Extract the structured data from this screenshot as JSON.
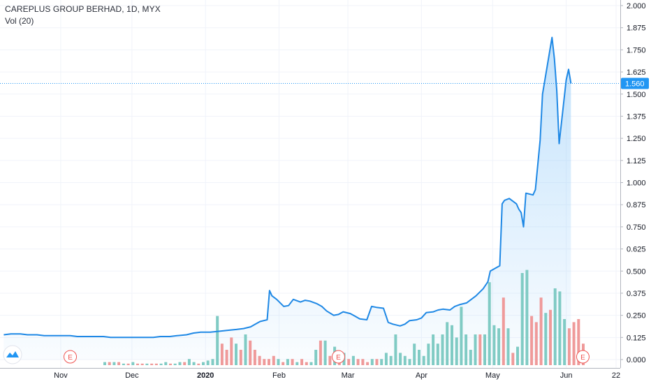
{
  "header": {
    "title": "CAREPLUS GROUP BERHAD, 1D, MYX",
    "volume_label": "Vol (20)"
  },
  "last_price_label": "1.560",
  "earnings_marker": "E",
  "colors": {
    "line": "#1e88e5",
    "area_top": "#90caf9",
    "vol_up": "#80cbc4",
    "vol_down": "#ef9a9a",
    "price_badge": "#2196f3",
    "earnings": "#ef5350",
    "grid": "#f0f3fa",
    "logo": "#2196f3"
  },
  "icons": [
    "tradingview-logo-icon",
    "earnings-marker-icon"
  ],
  "chart_data": {
    "type": "line",
    "title": "CAREPLUS GROUP BERHAD, 1D, MYX",
    "y_axis_position": "right",
    "ylim": [
      0.0,
      2.0
    ],
    "y_ticks": [
      "2.000",
      "1.875",
      "1.750",
      "1.625",
      "1.500",
      "1.375",
      "1.250",
      "1.125",
      "1.000",
      "0.875",
      "0.750",
      "0.625",
      "0.500",
      "0.375",
      "0.250",
      "0.125",
      "0.000"
    ],
    "x_ticks": [
      {
        "label": "Nov",
        "date": "2019-11-01"
      },
      {
        "label": "Dec",
        "date": "2019-12-01"
      },
      {
        "label": "2020",
        "date": "2020-01-01",
        "bold": true
      },
      {
        "label": "Feb",
        "date": "2020-02-01"
      },
      {
        "label": "Mar",
        "date": "2020-03-01"
      },
      {
        "label": "Apr",
        "date": "2020-04-01"
      },
      {
        "label": "May",
        "date": "2020-05-01"
      },
      {
        "label": "Jun",
        "date": "2020-06-01"
      },
      {
        "label": "22",
        "date": "2020-06-22"
      }
    ],
    "last_price": 1.56,
    "earnings_dates": [
      "2019-11-05",
      "2020-02-26",
      "2020-06-08"
    ],
    "series": [
      {
        "name": "Close",
        "points": [
          [
            "2019-10-08",
            0.14
          ],
          [
            "2019-10-11",
            0.145
          ],
          [
            "2019-10-15",
            0.145
          ],
          [
            "2019-10-18",
            0.14
          ],
          [
            "2019-10-22",
            0.14
          ],
          [
            "2019-10-25",
            0.135
          ],
          [
            "2019-10-29",
            0.135
          ],
          [
            "2019-11-01",
            0.135
          ],
          [
            "2019-11-05",
            0.135
          ],
          [
            "2019-11-08",
            0.13
          ],
          [
            "2019-11-12",
            0.13
          ],
          [
            "2019-11-15",
            0.13
          ],
          [
            "2019-11-19",
            0.13
          ],
          [
            "2019-11-22",
            0.125
          ],
          [
            "2019-11-26",
            0.125
          ],
          [
            "2019-11-29",
            0.125
          ],
          [
            "2019-12-03",
            0.125
          ],
          [
            "2019-12-06",
            0.125
          ],
          [
            "2019-12-10",
            0.125
          ],
          [
            "2019-12-13",
            0.13
          ],
          [
            "2019-12-17",
            0.13
          ],
          [
            "2019-12-20",
            0.135
          ],
          [
            "2019-12-24",
            0.14
          ],
          [
            "2019-12-27",
            0.15
          ],
          [
            "2019-12-30",
            0.155
          ],
          [
            "2020-01-03",
            0.155
          ],
          [
            "2020-01-07",
            0.16
          ],
          [
            "2020-01-10",
            0.165
          ],
          [
            "2020-01-14",
            0.17
          ],
          [
            "2020-01-17",
            0.175
          ],
          [
            "2020-01-20",
            0.185
          ],
          [
            "2020-01-22",
            0.2
          ],
          [
            "2020-01-24",
            0.215
          ],
          [
            "2020-01-27",
            0.225
          ],
          [
            "2020-01-28",
            0.39
          ],
          [
            "2020-01-29",
            0.36
          ],
          [
            "2020-01-31",
            0.34
          ],
          [
            "2020-02-03",
            0.3
          ],
          [
            "2020-02-05",
            0.305
          ],
          [
            "2020-02-07",
            0.34
          ],
          [
            "2020-02-10",
            0.325
          ],
          [
            "2020-02-12",
            0.335
          ],
          [
            "2020-02-14",
            0.33
          ],
          [
            "2020-02-17",
            0.315
          ],
          [
            "2020-02-19",
            0.3
          ],
          [
            "2020-02-21",
            0.275
          ],
          [
            "2020-02-24",
            0.25
          ],
          [
            "2020-02-26",
            0.255
          ],
          [
            "2020-02-28",
            0.27
          ],
          [
            "2020-03-02",
            0.26
          ],
          [
            "2020-03-04",
            0.245
          ],
          [
            "2020-03-06",
            0.23
          ],
          [
            "2020-03-09",
            0.225
          ],
          [
            "2020-03-11",
            0.3
          ],
          [
            "2020-03-13",
            0.295
          ],
          [
            "2020-03-16",
            0.29
          ],
          [
            "2020-03-18",
            0.21
          ],
          [
            "2020-03-20",
            0.2
          ],
          [
            "2020-03-23",
            0.19
          ],
          [
            "2020-03-25",
            0.2
          ],
          [
            "2020-03-27",
            0.22
          ],
          [
            "2020-03-30",
            0.225
          ],
          [
            "2020-04-01",
            0.235
          ],
          [
            "2020-04-03",
            0.265
          ],
          [
            "2020-04-06",
            0.27
          ],
          [
            "2020-04-08",
            0.28
          ],
          [
            "2020-04-10",
            0.285
          ],
          [
            "2020-04-13",
            0.28
          ],
          [
            "2020-04-15",
            0.3
          ],
          [
            "2020-04-17",
            0.31
          ],
          [
            "2020-04-20",
            0.32
          ],
          [
            "2020-04-22",
            0.34
          ],
          [
            "2020-04-24",
            0.36
          ],
          [
            "2020-04-27",
            0.4
          ],
          [
            "2020-04-29",
            0.44
          ],
          [
            "2020-04-30",
            0.5
          ],
          [
            "2020-05-04",
            0.53
          ],
          [
            "2020-05-05",
            0.88
          ],
          [
            "2020-05-06",
            0.9
          ],
          [
            "2020-05-08",
            0.91
          ],
          [
            "2020-05-11",
            0.88
          ],
          [
            "2020-05-12",
            0.85
          ],
          [
            "2020-05-13",
            0.83
          ],
          [
            "2020-05-14",
            0.75
          ],
          [
            "2020-05-15",
            0.94
          ],
          [
            "2020-05-18",
            0.93
          ],
          [
            "2020-05-19",
            0.96
          ],
          [
            "2020-05-20",
            1.1
          ],
          [
            "2020-05-21",
            1.24
          ],
          [
            "2020-05-22",
            1.5
          ],
          [
            "2020-05-26",
            1.82
          ],
          [
            "2020-05-27",
            1.7
          ],
          [
            "2020-05-28",
            1.52
          ],
          [
            "2020-05-29",
            1.22
          ],
          [
            "2020-06-01",
            1.58
          ],
          [
            "2020-06-02",
            1.64
          ],
          [
            "2020-06-03",
            1.56
          ]
        ]
      },
      {
        "name": "Vol (20)",
        "type": "bar",
        "note_units": "relative",
        "values": [
          [
            0.01,
            "up"
          ],
          [
            0.01,
            "down"
          ],
          [
            0.01,
            "up"
          ],
          [
            0.01,
            "down"
          ],
          [
            0.005,
            "up"
          ],
          [
            0.005,
            "down"
          ],
          [
            0.01,
            "up"
          ],
          [
            0.005,
            "down"
          ],
          [
            0.005,
            "down"
          ],
          [
            0.005,
            "up"
          ],
          [
            0.005,
            "down"
          ],
          [
            0.005,
            "down"
          ],
          [
            0.005,
            "up"
          ],
          [
            0.01,
            "up"
          ],
          [
            0.005,
            "down"
          ],
          [
            0.005,
            "up"
          ],
          [
            0.01,
            "up"
          ],
          [
            0.01,
            "down"
          ],
          [
            0.02,
            "up"
          ],
          [
            0.01,
            "up"
          ],
          [
            0.005,
            "down"
          ],
          [
            0.01,
            "up"
          ],
          [
            0.015,
            "up"
          ],
          [
            0.02,
            "up"
          ],
          [
            0.16,
            "up"
          ],
          [
            0.07,
            "down"
          ],
          [
            0.05,
            "down"
          ],
          [
            0.09,
            "down"
          ],
          [
            0.07,
            "up"
          ],
          [
            0.05,
            "down"
          ],
          [
            0.1,
            "up"
          ],
          [
            0.08,
            "down"
          ],
          [
            0.05,
            "down"
          ],
          [
            0.03,
            "down"
          ],
          [
            0.02,
            "down"
          ],
          [
            0.02,
            "down"
          ],
          [
            0.03,
            "down"
          ],
          [
            0.02,
            "up"
          ],
          [
            0.01,
            "down"
          ],
          [
            0.02,
            "up"
          ],
          [
            0.02,
            "down"
          ],
          [
            0.01,
            "up"
          ],
          [
            0.02,
            "down"
          ],
          [
            0.01,
            "down"
          ],
          [
            0.01,
            "up"
          ],
          [
            0.05,
            "up"
          ],
          [
            0.08,
            "down"
          ],
          [
            0.08,
            "up"
          ],
          [
            0.03,
            "down"
          ],
          [
            0.06,
            "up"
          ],
          [
            0.03,
            "down"
          ],
          [
            0.04,
            "up"
          ],
          [
            0.02,
            "down"
          ],
          [
            0.03,
            "up"
          ],
          [
            0.02,
            "down"
          ],
          [
            0.02,
            "down"
          ],
          [
            0.01,
            "down"
          ],
          [
            0.02,
            "up"
          ],
          [
            0.02,
            "down"
          ],
          [
            0.02,
            "up"
          ],
          [
            0.04,
            "up"
          ],
          [
            0.03,
            "up"
          ],
          [
            0.1,
            "up"
          ],
          [
            0.04,
            "up"
          ],
          [
            0.03,
            "up"
          ],
          [
            0.02,
            "up"
          ],
          [
            0.07,
            "up"
          ],
          [
            0.05,
            "up"
          ],
          [
            0.03,
            "up"
          ],
          [
            0.07,
            "up"
          ],
          [
            0.1,
            "up"
          ],
          [
            0.07,
            "up"
          ],
          [
            0.1,
            "up"
          ],
          [
            0.14,
            "up"
          ],
          [
            0.13,
            "up"
          ],
          [
            0.09,
            "up"
          ],
          [
            0.19,
            "up"
          ],
          [
            0.1,
            "up"
          ],
          [
            0.05,
            "up"
          ],
          [
            0.1,
            "up"
          ],
          [
            0.1,
            "down"
          ],
          [
            0.1,
            "up"
          ],
          [
            0.27,
            "up"
          ],
          [
            0.13,
            "up"
          ],
          [
            0.12,
            "up"
          ],
          [
            0.22,
            "down"
          ],
          [
            0.12,
            "up"
          ],
          [
            0.04,
            "down"
          ],
          [
            0.06,
            "up"
          ],
          [
            0.3,
            "up"
          ],
          [
            0.31,
            "up"
          ],
          [
            0.16,
            "down"
          ],
          [
            0.14,
            "down"
          ],
          [
            0.22,
            "down"
          ],
          [
            0.17,
            "up"
          ],
          [
            0.18,
            "down"
          ],
          [
            0.25,
            "up"
          ],
          [
            0.24,
            "up"
          ],
          [
            0.15,
            "up"
          ],
          [
            0.12,
            "down"
          ],
          [
            0.14,
            "down"
          ],
          [
            0.15,
            "down"
          ],
          [
            0.07,
            "down"
          ]
        ]
      }
    ]
  }
}
